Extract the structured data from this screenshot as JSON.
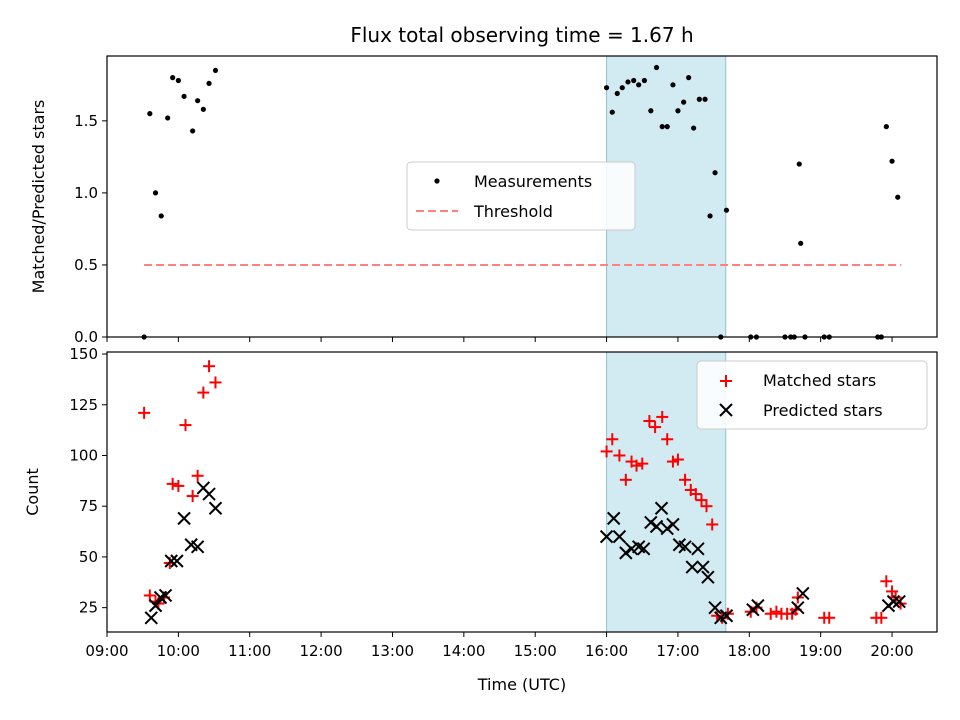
{
  "chart_data": {
    "type": "scatter",
    "title": "Flux total observing time = 1.67 h",
    "xlabel": "Time (UTC)",
    "x_ticks": [
      "09:00",
      "10:00",
      "11:00",
      "12:00",
      "13:00",
      "14:00",
      "15:00",
      "16:00",
      "17:00",
      "18:00",
      "19:00",
      "20:00"
    ],
    "xlim": [
      9.0,
      20.63
    ],
    "highlight_span": [
      16.0,
      17.67
    ],
    "colors": {
      "highlight": "#ADD8E6",
      "measurement": "#000000",
      "threshold": "#ff8080",
      "matched": "#ff0000",
      "predicted": "#000000"
    },
    "top": {
      "ylabel": "Matched/Predicted stars",
      "ylim": [
        0,
        1.95
      ],
      "y_ticks": [
        "0.0",
        "0.5",
        "1.0",
        "1.5"
      ],
      "y_tick_values": [
        0,
        0.5,
        1.0,
        1.5
      ],
      "legend": {
        "placement": "center",
        "measurements": "Measurements",
        "threshold": "Threshold"
      },
      "threshold": {
        "value": 0.5,
        "x_range": [
          9.52,
          20.13
        ]
      },
      "measurements": {
        "x": [
          9.52,
          9.6,
          9.68,
          9.76,
          9.85,
          9.92,
          10.0,
          10.08,
          10.2,
          10.27,
          10.35,
          10.43,
          10.52,
          16.0,
          16.08,
          16.15,
          16.22,
          16.3,
          16.38,
          16.45,
          16.53,
          16.62,
          16.7,
          16.78,
          16.85,
          16.93,
          17.0,
          17.08,
          17.15,
          17.22,
          17.3,
          17.38,
          17.45,
          17.52,
          17.6,
          17.68,
          18.02,
          18.1,
          18.5,
          18.58,
          18.63,
          18.7,
          18.72,
          18.78,
          19.05,
          19.12,
          19.8,
          19.85,
          19.92,
          20.0,
          20.08
        ],
        "y": [
          0.0,
          1.55,
          1.0,
          0.84,
          1.52,
          1.8,
          1.78,
          1.67,
          1.43,
          1.64,
          1.58,
          1.76,
          1.85,
          1.73,
          1.56,
          1.69,
          1.73,
          1.77,
          1.78,
          1.75,
          1.78,
          1.57,
          1.87,
          1.46,
          1.46,
          1.75,
          1.57,
          1.63,
          1.8,
          1.45,
          1.65,
          1.65,
          0.84,
          1.14,
          0.0,
          0.88,
          0.0,
          0.0,
          0.0,
          0.0,
          0.0,
          1.2,
          0.65,
          0.0,
          0.0,
          0.0,
          0.0,
          0.0,
          1.46,
          1.22,
          0.97
        ]
      }
    },
    "bottom": {
      "ylabel": "Count",
      "ylim": [
        13,
        151
      ],
      "y_ticks": [
        "25",
        "50",
        "75",
        "100",
        "125",
        "150"
      ],
      "y_tick_values": [
        25,
        50,
        75,
        100,
        125,
        150
      ],
      "legend": {
        "placement": "upper right",
        "matched": "Matched stars",
        "predicted": "Predicted stars"
      },
      "matched": {
        "x": [
          9.52,
          9.6,
          9.68,
          9.72,
          9.8,
          9.88,
          9.92,
          10.0,
          10.1,
          10.2,
          10.27,
          10.35,
          10.43,
          10.52,
          16.0,
          16.08,
          16.18,
          16.27,
          16.35,
          16.42,
          16.5,
          16.6,
          16.68,
          16.78,
          16.85,
          16.93,
          17.0,
          17.1,
          17.18,
          17.25,
          17.33,
          17.4,
          17.48,
          17.55,
          17.62,
          17.7,
          18.02,
          18.1,
          18.3,
          18.38,
          18.45,
          18.53,
          18.6,
          18.65,
          18.68,
          19.05,
          19.12,
          19.78,
          19.85,
          19.92,
          20.0,
          20.05,
          20.12
        ],
        "y": [
          121,
          31,
          28,
          27,
          30,
          47,
          86,
          85,
          115,
          80,
          90,
          131,
          144,
          136,
          102,
          108,
          100,
          88,
          97,
          95,
          96,
          117,
          114,
          119,
          108,
          97,
          98,
          88,
          83,
          81,
          78,
          75,
          66,
          21,
          20,
          22,
          23,
          25,
          22,
          23,
          22,
          22,
          22,
          24,
          30,
          20,
          20,
          20,
          20,
          38,
          33,
          30,
          27
        ]
      },
      "predicted": {
        "x": [
          9.62,
          9.68,
          9.75,
          9.82,
          9.9,
          9.98,
          10.08,
          10.18,
          10.27,
          10.35,
          10.43,
          10.52,
          16.0,
          16.1,
          16.18,
          16.27,
          16.35,
          16.45,
          16.52,
          16.62,
          16.7,
          16.77,
          16.85,
          16.93,
          17.02,
          17.1,
          17.2,
          17.28,
          17.35,
          17.42,
          17.52,
          17.6,
          17.68,
          18.05,
          18.12,
          18.68,
          18.75,
          19.95,
          20.02,
          20.1
        ],
        "y": [
          20,
          26,
          30,
          31,
          48,
          48,
          69,
          56,
          55,
          84,
          81,
          74,
          60,
          69,
          60,
          52,
          54,
          55,
          54,
          67,
          65,
          74,
          64,
          66,
          56,
          55,
          45,
          54,
          45,
          40,
          25,
          20,
          21,
          24,
          26,
          25,
          32,
          26,
          28,
          28
        ]
      }
    }
  }
}
